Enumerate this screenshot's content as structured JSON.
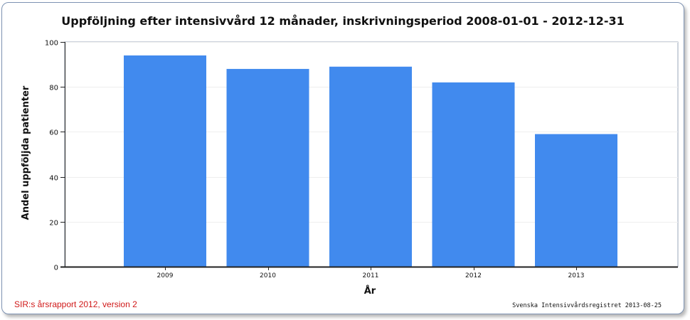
{
  "chart_data": {
    "type": "bar",
    "title": "Uppföljning efter intensivvård 12 månader, inskrivningsperiod 2008-01-01 - 2012-12-31",
    "xlabel": "År",
    "ylabel": "Andel uppföljda patienter",
    "categories": [
      "2009",
      "2010",
      "2011",
      "2012",
      "2013"
    ],
    "values": [
      94,
      88,
      89,
      82,
      59
    ],
    "ylim": [
      0,
      100
    ],
    "yticks": [
      0,
      20,
      40,
      60,
      80,
      100
    ],
    "grid": true,
    "legend": "none",
    "bar_color": "#418aee"
  },
  "footer": {
    "left_text": "SIR:s årsrapport 2012, version 2",
    "right_text": "Svenska Intensivvårdsregistret 2013-08-25"
  }
}
